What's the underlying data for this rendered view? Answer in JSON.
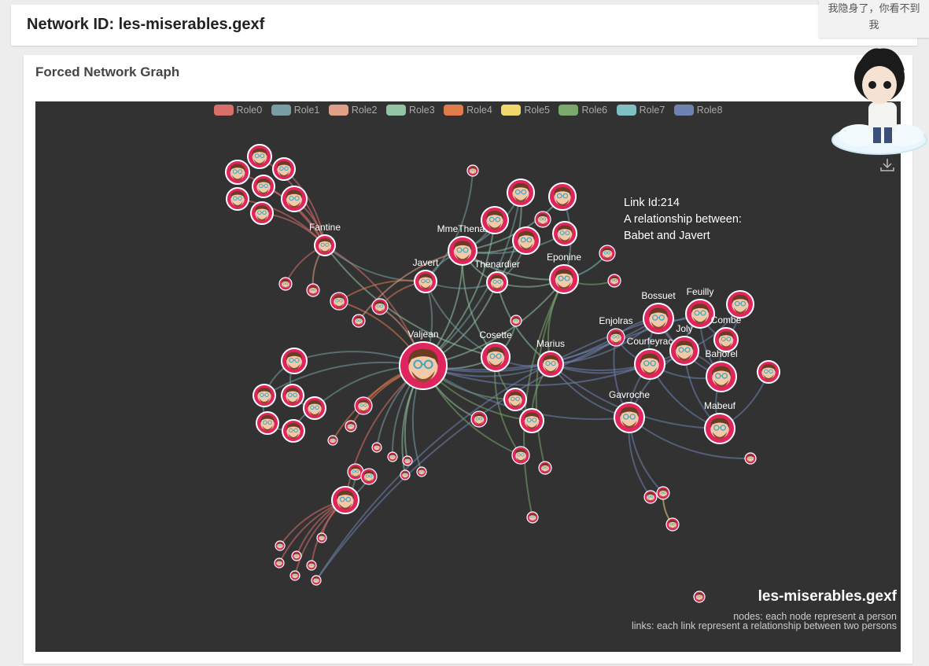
{
  "header": {
    "title": "Network ID: les-miserables.gexf"
  },
  "card": {
    "title": "Forced Network Graph"
  },
  "legend": [
    {
      "label": "Role0",
      "color": "#d86f6b"
    },
    {
      "label": "Role1",
      "color": "#789ea3"
    },
    {
      "label": "Role2",
      "color": "#dfa08a"
    },
    {
      "label": "Role3",
      "color": "#93c2a4"
    },
    {
      "label": "Role4",
      "color": "#e07b4c"
    },
    {
      "label": "Role5",
      "color": "#f0d86f"
    },
    {
      "label": "Role6",
      "color": "#7aa86d"
    },
    {
      "label": "Role7",
      "color": "#7ec0c4"
    },
    {
      "label": "Role8",
      "color": "#6f83b3"
    }
  ],
  "tooltip": {
    "line1": "Link Id:214",
    "line2": "A relationship between:",
    "line3": "Babet and Javert"
  },
  "watermark": {
    "title": "les-miserables.gexf",
    "desc1": "nodes: each node represent a person",
    "desc2": "links: each link represent a relationship between two persons"
  },
  "graph": {
    "node_color": "#e0245e",
    "node_labels": [
      "Fantine",
      "MmeThenar",
      "Javert",
      "Thenardier",
      "Eponine",
      "Valjean",
      "Cosette",
      "Marius",
      "Bossuet",
      "Feuilly",
      "Enjolras",
      "Combe",
      "Courfeyrac",
      "Bahorel",
      "Joly",
      "Gavroche",
      "Mabeuf"
    ]
  },
  "mascot": {
    "bubble_line1": "我隐身了，你看不到",
    "bubble_line2": "我"
  },
  "icons": {
    "download": "download-icon"
  }
}
